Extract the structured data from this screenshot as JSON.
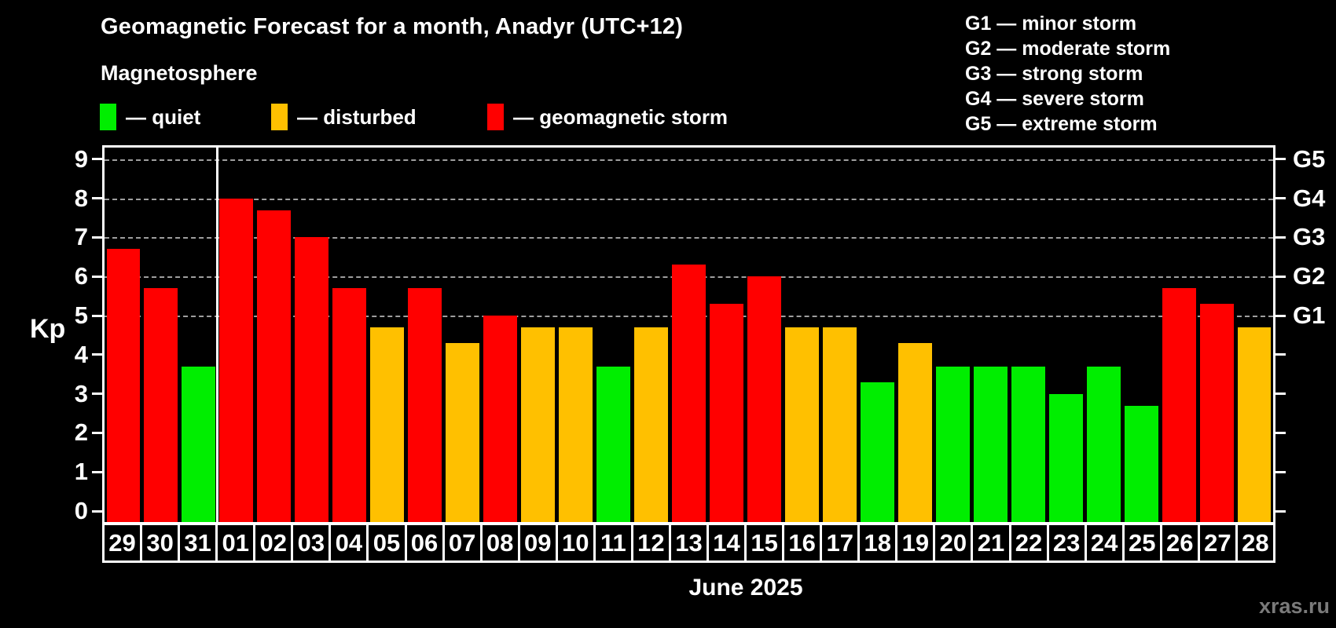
{
  "title": "Geomagnetic Forecast for a month, Anadyr (UTC+12)",
  "subtitle": "Magnetosphere",
  "legend": {
    "items": [
      {
        "name": "quiet",
        "label": "— quiet",
        "color": "#00ee00"
      },
      {
        "name": "disturbed",
        "label": "— disturbed",
        "color": "#ffc000"
      },
      {
        "name": "storm",
        "label": "— geomagnetic storm",
        "color": "#ff0000"
      }
    ]
  },
  "g_legend": {
    "items": [
      "G1 — minor storm",
      "G2 — moderate storm",
      "G3 — strong storm",
      "G4 — severe storm",
      "G5 — extreme storm"
    ]
  },
  "chart_data": {
    "type": "bar",
    "title": "Geomagnetic Forecast for a month, Anadyr (UTC+12)",
    "subtitle": "Magnetosphere",
    "ylabel": "Kp",
    "xlabel": "June 2025",
    "ylim": [
      0,
      9
    ],
    "yticks": [
      0,
      1,
      2,
      3,
      4,
      5,
      6,
      7,
      8,
      9
    ],
    "gridlines_at_kp": [
      5,
      6,
      7,
      8,
      9
    ],
    "grid": "dashed horizontal at storm levels only",
    "legend_position": "top-left",
    "right_axis_labels": [
      {
        "label": "G1",
        "kp": 5
      },
      {
        "label": "G2",
        "kp": 6
      },
      {
        "label": "G3",
        "kp": 7
      },
      {
        "label": "G4",
        "kp": 8
      },
      {
        "label": "G5",
        "kp": 9
      }
    ],
    "month_separator_before_index": 3,
    "categories": [
      "29",
      "30",
      "31",
      "01",
      "02",
      "03",
      "04",
      "05",
      "06",
      "07",
      "08",
      "09",
      "10",
      "11",
      "12",
      "13",
      "14",
      "15",
      "16",
      "17",
      "18",
      "19",
      "20",
      "21",
      "22",
      "23",
      "24",
      "25",
      "26",
      "27",
      "28"
    ],
    "values": [
      6.7,
      5.7,
      3.7,
      8.0,
      7.7,
      7.0,
      5.7,
      4.7,
      5.7,
      4.3,
      5.0,
      4.7,
      4.7,
      3.7,
      4.7,
      6.3,
      5.3,
      6.0,
      4.7,
      4.7,
      3.3,
      4.3,
      3.7,
      3.7,
      3.7,
      3.0,
      3.7,
      2.7,
      5.7,
      5.3,
      4.7
    ],
    "statuses": [
      "storm",
      "storm",
      "quiet",
      "storm",
      "storm",
      "storm",
      "storm",
      "disturbed",
      "storm",
      "disturbed",
      "storm",
      "disturbed",
      "disturbed",
      "quiet",
      "disturbed",
      "storm",
      "storm",
      "storm",
      "disturbed",
      "disturbed",
      "quiet",
      "disturbed",
      "quiet",
      "quiet",
      "quiet",
      "quiet",
      "quiet",
      "quiet",
      "storm",
      "storm",
      "disturbed"
    ]
  },
  "colors": {
    "quiet": "#00ee00",
    "disturbed": "#ffc000",
    "storm": "#ff0000",
    "gridline": "#9e9e9e",
    "axis": "#ffffff",
    "background": "#000000",
    "watermark_text": "#7a7a7a"
  },
  "footer": {
    "month_label": "June 2025",
    "watermark": "xras.ru"
  }
}
